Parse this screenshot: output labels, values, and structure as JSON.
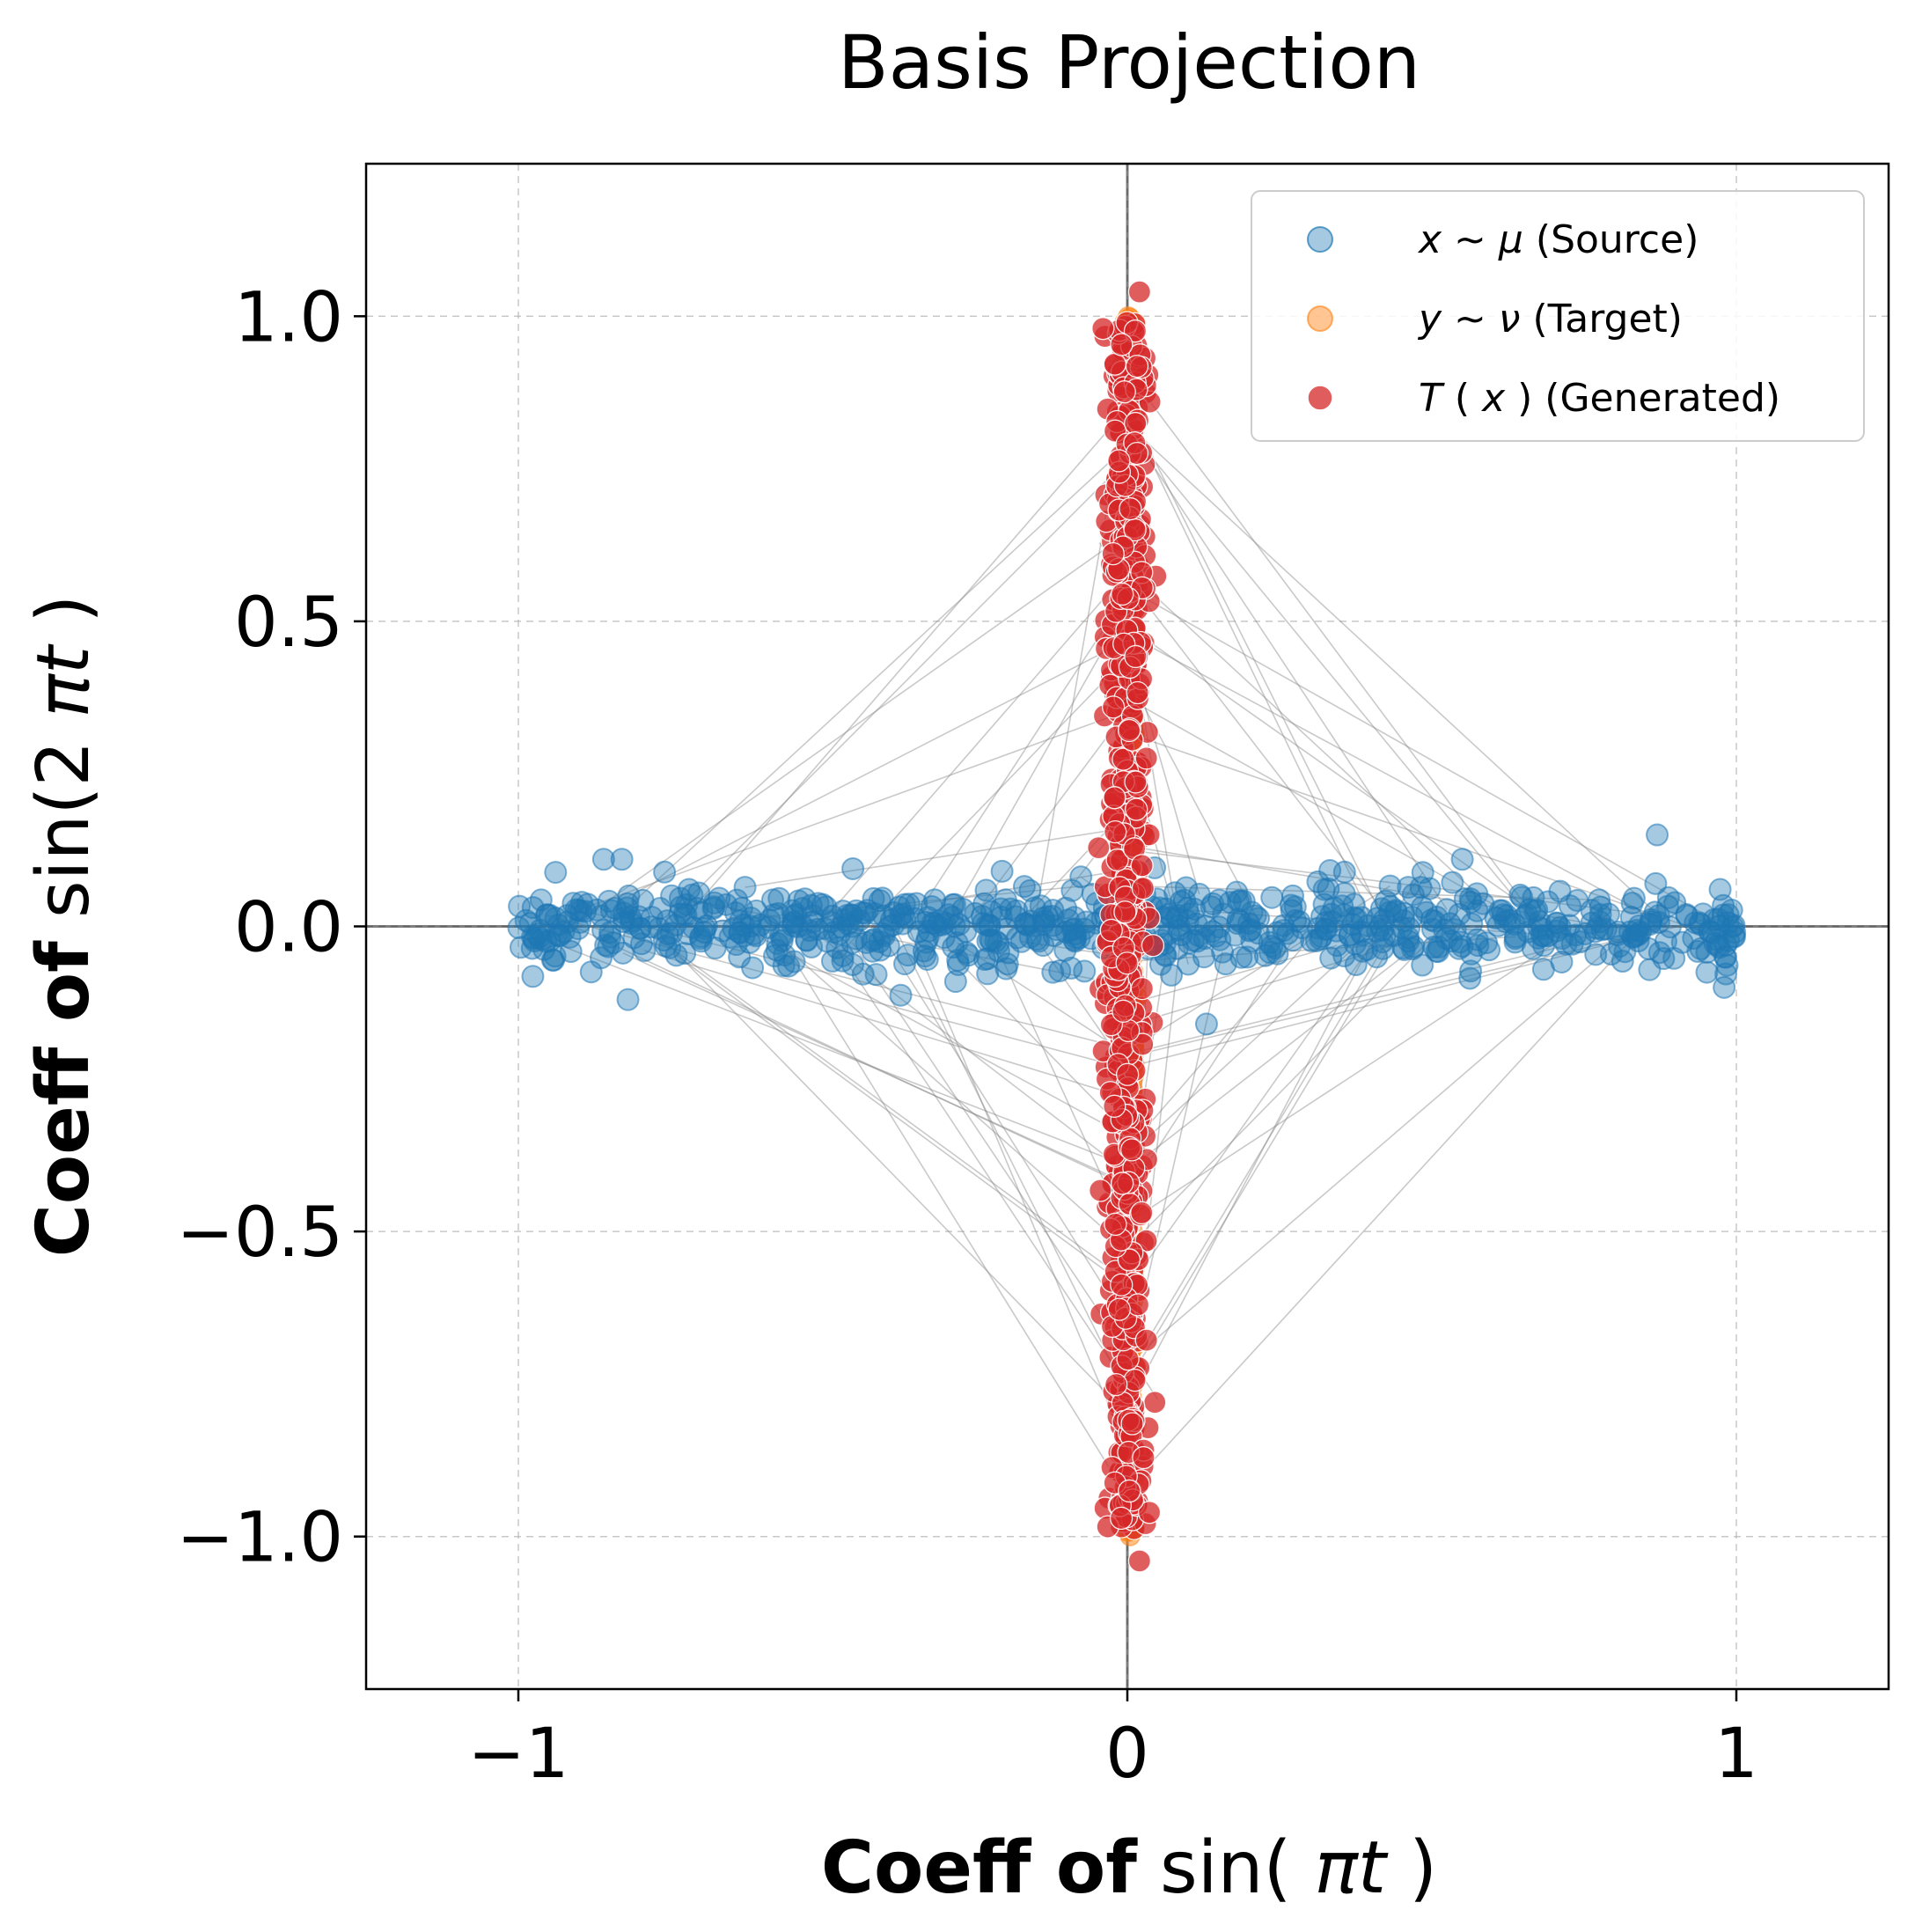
{
  "chart_data": {
    "type": "scatter",
    "title": "Basis Projection",
    "xlabel": {
      "bold": "Coeff of",
      "math_pre": "sin(",
      "math_var": "πt",
      "math_post": ")"
    },
    "ylabel": {
      "bold": "Coeff of",
      "math_pre": "sin(2",
      "math_var": "πt",
      "math_post": ")"
    },
    "xlim": [
      -1.25,
      1.25
    ],
    "ylim": [
      -1.25,
      1.25
    ],
    "xticks": [
      {
        "value": -1,
        "label": "−1"
      },
      {
        "value": 0,
        "label": "0"
      },
      {
        "value": 1,
        "label": "1"
      }
    ],
    "yticks": [
      {
        "value": 1.0,
        "label": "1.0"
      },
      {
        "value": 0.5,
        "label": "0.5"
      },
      {
        "value": 0.0,
        "label": "0.0"
      },
      {
        "value": -0.5,
        "label": "−0.5"
      },
      {
        "value": -1.0,
        "label": "−1.0"
      }
    ],
    "grid": true,
    "legend_position": "top-right",
    "series": [
      {
        "name": "x ~ μ (Source)",
        "legend": {
          "var": "x",
          "sym": " ~ ",
          "dist": "μ",
          "text": " (Source)"
        },
        "color": "#1f77b4",
        "description": "points spread along the horizontal axis, x from -1 to 1, y near 0 (spread ~0.05)",
        "x_range": [
          -1,
          1
        ],
        "y_center": 0.0,
        "y_spread": 0.05,
        "count": 700
      },
      {
        "name": "y ~ ν (Target)",
        "legend": {
          "var": "y",
          "sym": " ~ ",
          "dist": "ν",
          "text": " (Target)"
        },
        "color": "#ff7f0e",
        "description": "points spread along the vertical axis, x near 0, y from -1 to 1",
        "y_range": [
          -1,
          1
        ],
        "x_center": 0.0,
        "count": 400
      },
      {
        "name": "T(x) (Generated)",
        "legend": {
          "var": "T",
          "mid": "(",
          "var2": "x",
          "post": ")",
          "text": " (Generated)"
        },
        "color": "#d62728",
        "description": "generated points along the vertical axis, x near 0 (spread ~0.02), y from -1.04 to 1.04",
        "y_range": [
          -1.04,
          1.04
        ],
        "x_center": 0.0,
        "x_spread": 0.02,
        "count": 700
      }
    ],
    "sample_points": {
      "source": [
        [
          -0.86,
          0.11
        ],
        [
          -0.83,
          0.11
        ],
        [
          -0.82,
          -0.12
        ],
        [
          0.13,
          -0.16
        ],
        [
          0.55,
          0.11
        ],
        [
          0.87,
          0.15
        ],
        [
          0.98,
          -0.1
        ]
      ],
      "generated": [
        [
          0.02,
          1.04
        ],
        [
          0.02,
          -1.04
        ],
        [
          -0.04,
          0.98
        ],
        [
          -0.01,
          -0.97
        ]
      ]
    },
    "transport_lines": {
      "description": "gray lines connecting source points to their generated counterparts",
      "color": "#888888",
      "count": 90
    }
  }
}
